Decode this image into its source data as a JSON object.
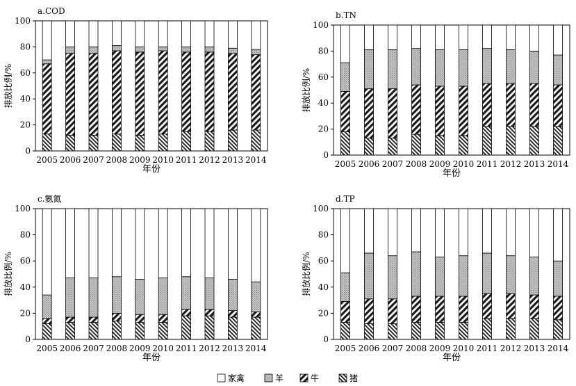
{
  "figure": {
    "xlabel": "年份",
    "ylabel": "排放比例/%",
    "legend": [
      {
        "label": "家禽",
        "pattern": "none"
      },
      {
        "label": "羊",
        "pattern": "dots"
      },
      {
        "label": "牛",
        "pattern": "hatch"
      },
      {
        "label": "猪",
        "pattern": "stripes"
      }
    ]
  },
  "chart_data": [
    {
      "type": "bar",
      "stacked": true,
      "title": "a.COD",
      "categories": [
        "2005",
        "2006",
        "2007",
        "2008",
        "2009",
        "2010",
        "2011",
        "2012",
        "2013",
        "2014"
      ],
      "ylim": [
        0,
        100
      ],
      "yticks": [
        0,
        20,
        40,
        60,
        80,
        100
      ],
      "series": [
        {
          "name": "猪",
          "values": [
            13,
            12,
            12,
            13,
            12,
            13,
            15,
            15,
            16,
            16
          ]
        },
        {
          "name": "牛",
          "values": [
            54,
            63,
            63,
            64,
            64,
            64,
            61,
            61,
            59,
            58
          ]
        },
        {
          "name": "羊",
          "values": [
            3,
            5,
            5,
            4,
            4,
            3,
            4,
            4,
            4,
            4
          ]
        },
        {
          "name": "家禽",
          "values": [
            30,
            20,
            20,
            19,
            20,
            20,
            20,
            20,
            21,
            22
          ]
        }
      ]
    },
    {
      "type": "bar",
      "stacked": true,
      "title": "b.TN",
      "categories": [
        "2005",
        "2006",
        "2007",
        "2008",
        "2009",
        "2010",
        "2011",
        "2012",
        "2013",
        "2014"
      ],
      "ylim": [
        0,
        100
      ],
      "yticks": [
        0,
        20,
        40,
        60,
        80,
        100
      ],
      "series": [
        {
          "name": "猪",
          "values": [
            18,
            13,
            13,
            16,
            15,
            15,
            22,
            22,
            22,
            22
          ]
        },
        {
          "name": "牛",
          "values": [
            31,
            38,
            38,
            38,
            38,
            38,
            33,
            33,
            33,
            32
          ]
        },
        {
          "name": "羊",
          "values": [
            22,
            30,
            30,
            28,
            28,
            28,
            27,
            26,
            25,
            23
          ]
        },
        {
          "name": "家禽",
          "values": [
            29,
            19,
            19,
            18,
            19,
            19,
            18,
            19,
            20,
            23
          ]
        }
      ]
    },
    {
      "type": "bar",
      "stacked": true,
      "title": "c.氨氮",
      "categories": [
        "2005",
        "2006",
        "2007",
        "2008",
        "2009",
        "2010",
        "2011",
        "2012",
        "2013",
        "2014"
      ],
      "ylim": [
        0,
        100
      ],
      "yticks": [
        0,
        20,
        40,
        60,
        80,
        100
      ],
      "series": [
        {
          "name": "猪",
          "values": [
            12,
            13,
            13,
            14,
            13,
            13,
            18,
            18,
            17,
            17
          ]
        },
        {
          "name": "牛",
          "values": [
            4,
            4,
            4,
            6,
            6,
            6,
            5,
            5,
            5,
            4
          ]
        },
        {
          "name": "羊",
          "values": [
            18,
            30,
            30,
            28,
            27,
            28,
            25,
            24,
            24,
            23
          ]
        },
        {
          "name": "家禽",
          "values": [
            66,
            53,
            53,
            52,
            54,
            53,
            52,
            53,
            54,
            56
          ]
        }
      ]
    },
    {
      "type": "bar",
      "stacked": true,
      "title": "d.TP",
      "categories": [
        "2005",
        "2006",
        "2007",
        "2008",
        "2009",
        "2010",
        "2011",
        "2012",
        "2013",
        "2014"
      ],
      "ylim": [
        0,
        100
      ],
      "yticks": [
        0,
        20,
        40,
        60,
        80,
        100
      ],
      "series": [
        {
          "name": "猪",
          "values": [
            13,
            12,
            12,
            13,
            13,
            13,
            16,
            16,
            16,
            15
          ]
        },
        {
          "name": "牛",
          "values": [
            16,
            19,
            19,
            20,
            20,
            20,
            19,
            19,
            18,
            18
          ]
        },
        {
          "name": "羊",
          "values": [
            22,
            35,
            33,
            34,
            30,
            31,
            31,
            29,
            29,
            27
          ]
        },
        {
          "name": "家禽",
          "values": [
            49,
            34,
            36,
            33,
            37,
            36,
            34,
            36,
            37,
            40
          ]
        }
      ]
    }
  ]
}
